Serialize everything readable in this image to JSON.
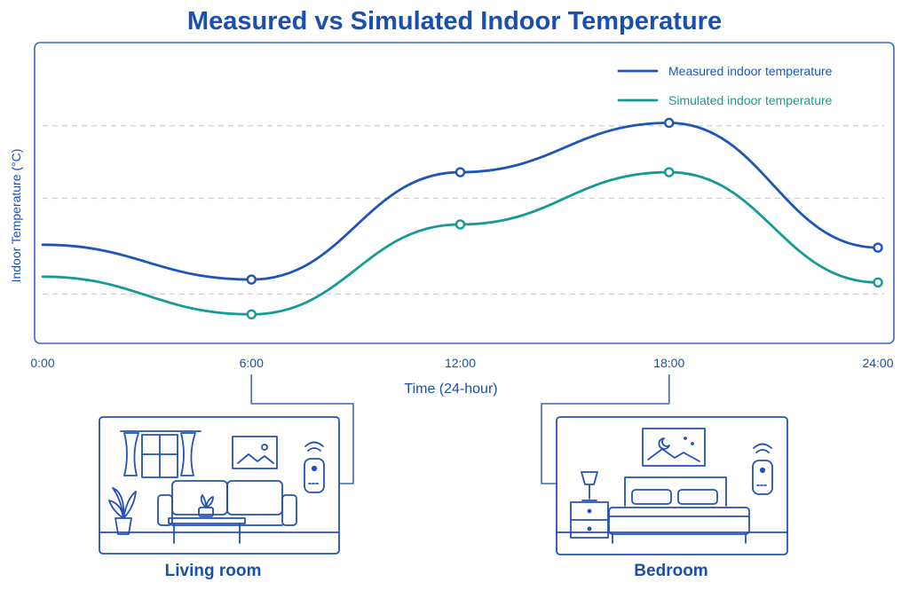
{
  "chart_data": {
    "type": "line",
    "title": "Measured vs Simulated Indoor Temperature",
    "xlabel": "Time (24-hour)",
    "ylabel": "Indoor Temperature (°C)",
    "x_ticks": [
      "0:00",
      "6:00",
      "12:00",
      "18:00",
      "24:00"
    ],
    "xlim": [
      0,
      24
    ],
    "ylim": [
      0,
      100
    ],
    "y_scale_note": "",
    "grid": "horizontal dashed",
    "legend_position": "top-right",
    "series": [
      {
        "name": "Measured indoor temperature",
        "color": "#1d56b8",
        "x": [
          0,
          6,
          12,
          18,
          24
        ],
        "y": [
          34,
          22,
          59,
          76,
          33
        ],
        "markers_at": [
          6,
          12,
          18,
          24
        ]
      },
      {
        "name": "Simulated indoor temperature",
        "color": "#169a96",
        "x": [
          0,
          6,
          12,
          18,
          24
        ],
        "y": [
          23,
          10,
          41,
          59,
          21
        ],
        "markers_at": [
          6,
          12,
          18,
          24
        ]
      }
    ],
    "callouts": [
      {
        "label": "Living room",
        "x": 6
      },
      {
        "label": "Bedroom",
        "x": 18
      }
    ]
  },
  "colors": {
    "primary": "#1a4fae",
    "frame": "#3f66c8",
    "grid": "#c9ced8"
  }
}
